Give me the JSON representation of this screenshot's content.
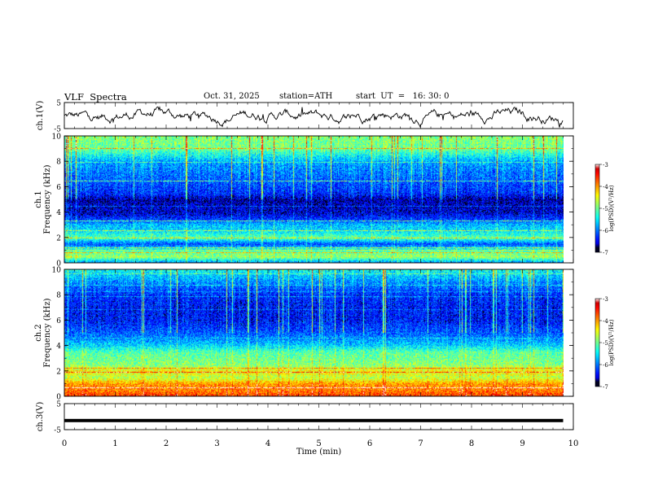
{
  "header": {
    "title": "VLF  Spectra",
    "date": "Oct. 31, 2025",
    "station": "station=ATH",
    "start_ut": "start  UT  =   16: 30: 0"
  },
  "chart_data": [
    {
      "type": "line",
      "title": "ch.1 waveform",
      "ylabel": "ch.1(V)",
      "ylim": [
        -5,
        5
      ],
      "yticks": [
        "5",
        "-5"
      ],
      "x_range_min": [
        0,
        9.8
      ],
      "description_series": "noisy waveform fluctuating roughly between -3 and +3 V"
    },
    {
      "type": "heatmap",
      "title": "ch.1 spectrogram",
      "ylabel": "ch.1\nFrequency  (kHz)",
      "ylim_khz": [
        0,
        10
      ],
      "yticks": [
        "0",
        "2",
        "4",
        "6",
        "8",
        "10"
      ],
      "colorbar": {
        "label": "log(PSD)(V²/Hz)",
        "ticks": [
          "-3",
          "-4",
          "-5",
          "-6",
          "-7"
        ],
        "range": [
          -7,
          -3
        ]
      },
      "frequency_profile_logpsd": [
        [
          0,
          -6.0
        ],
        [
          0.5,
          -4.8
        ],
        [
          1,
          -5.2
        ],
        [
          1.5,
          -6.2
        ],
        [
          2,
          -5.1
        ],
        [
          2.6,
          -5.6
        ],
        [
          3,
          -5.7
        ],
        [
          3.5,
          -6.3
        ],
        [
          4,
          -6.6
        ],
        [
          4.5,
          -6.6
        ],
        [
          5,
          -6.7
        ],
        [
          5.5,
          -6.3
        ],
        [
          6,
          -6.2
        ],
        [
          7,
          -6.0
        ],
        [
          8,
          -5.8
        ],
        [
          9,
          -5.0
        ],
        [
          10,
          -4.9
        ]
      ]
    },
    {
      "type": "heatmap",
      "title": "ch.2 spectrogram",
      "ylabel": "ch.2\nFrequency  (kHz)",
      "ylim_khz": [
        0,
        10
      ],
      "yticks": [
        "0",
        "2",
        "4",
        "6",
        "8",
        "10"
      ],
      "colorbar": {
        "label": "log(PSD)(V²/Hz)",
        "ticks": [
          "-3",
          "-4",
          "-5",
          "-6",
          "-7"
        ],
        "range": [
          -7,
          -3
        ]
      },
      "frequency_profile_logpsd": [
        [
          0,
          -3.6
        ],
        [
          0.5,
          -3.9
        ],
        [
          1,
          -4.0
        ],
        [
          1.5,
          -4.7
        ],
        [
          2,
          -4.4
        ],
        [
          2.5,
          -4.9
        ],
        [
          3,
          -5.0
        ],
        [
          3.5,
          -5.1
        ],
        [
          4,
          -5.6
        ],
        [
          4.5,
          -5.9
        ],
        [
          5,
          -6.1
        ],
        [
          6,
          -6.4
        ],
        [
          7,
          -6.4
        ],
        [
          8,
          -6.3
        ],
        [
          9,
          -5.9
        ],
        [
          10,
          -5.4
        ]
      ]
    },
    {
      "type": "line",
      "title": "ch.3 waveform",
      "ylabel": "ch.3(V)",
      "ylim": [
        -5,
        5
      ],
      "yticks": [
        "5",
        "-5"
      ],
      "value_level": -1.5
    }
  ],
  "xaxis": {
    "label": "Time  (min)",
    "range": [
      0,
      10
    ],
    "ticks": [
      "0",
      "1",
      "2",
      "3",
      "4",
      "5",
      "6",
      "7",
      "8",
      "9",
      "10"
    ],
    "data_end": 9.8
  }
}
